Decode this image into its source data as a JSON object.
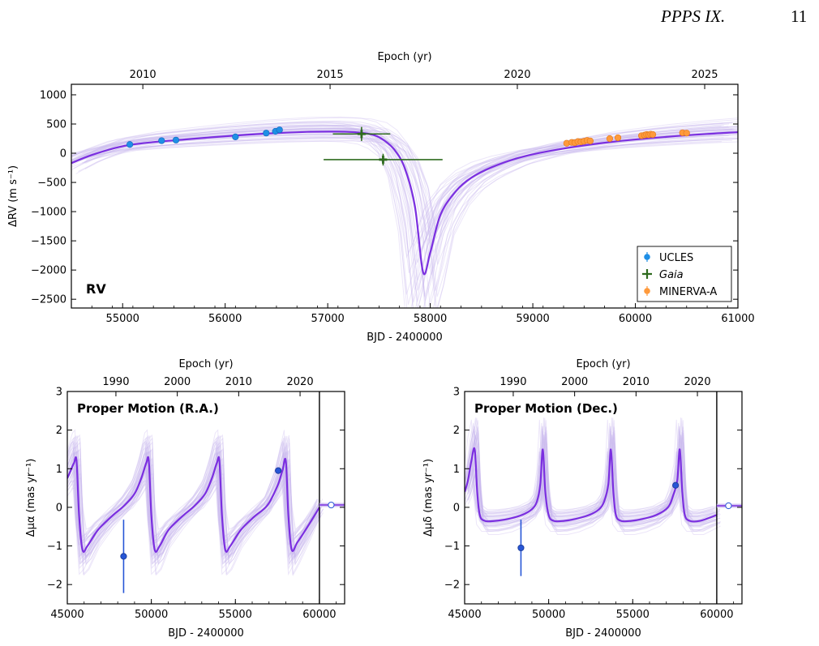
{
  "header": {
    "running_title": "PPPS IX.",
    "page_number": "11"
  },
  "chart_data": [
    {
      "type": "scatter",
      "panel_label": "RV",
      "xlabel": "BJD - 2400000",
      "ylabel": "ΔRV (m s⁻¹)",
      "top_xlabel": "Epoch (yr)",
      "xlim": [
        54500,
        61000
      ],
      "ylim": [
        -2650,
        1180
      ],
      "xticks": [
        55000,
        56000,
        57000,
        58000,
        59000,
        60000,
        61000
      ],
      "yticks": [
        1000,
        500,
        0,
        -500,
        -1000,
        -1500,
        -2000,
        -2500
      ],
      "top_ticks": [
        {
          "label": "2010",
          "value": 55197
        },
        {
          "label": "2015",
          "value": 57023
        },
        {
          "label": "2020",
          "value": 58849
        },
        {
          "label": "2025",
          "value": 60676
        }
      ],
      "legend_position": "lower-right",
      "model_curve": {
        "name": "best-fit orbit",
        "x": [
          54500,
          54700,
          55000,
          55300,
          55600,
          56000,
          56400,
          56800,
          57100,
          57300,
          57450,
          57550,
          57650,
          57750,
          57850,
          57930,
          58000,
          58100,
          58250,
          58400,
          58600,
          58900,
          59300,
          59800,
          60300,
          60700,
          61000
        ],
        "y": [
          -170,
          -30,
          120,
          190,
          235,
          290,
          335,
          365,
          370,
          355,
          310,
          220,
          60,
          -250,
          -900,
          -2040,
          -1700,
          -1050,
          -650,
          -420,
          -240,
          -60,
          80,
          200,
          280,
          330,
          360
        ]
      },
      "series": [
        {
          "name": "UCLES",
          "marker": "circle",
          "color": "#1f8fe6",
          "points": [
            {
              "x": 55070,
              "y": 150
            },
            {
              "x": 55380,
              "y": 215
            },
            {
              "x": 55520,
              "y": 225
            },
            {
              "x": 56100,
              "y": 280
            },
            {
              "x": 56400,
              "y": 345
            },
            {
              "x": 56490,
              "y": 375
            },
            {
              "x": 56530,
              "y": 400
            }
          ]
        },
        {
          "name": "Gaia",
          "marker": "plus",
          "color": "#2e6b1e",
          "points": [
            {
              "x": 57330,
              "y": 330,
              "xerr": 280,
              "yerr": 120
            },
            {
              "x": 57540,
              "y": -110,
              "xerr": 580,
              "yerr": 100
            }
          ]
        },
        {
          "name": "MINERVA-A",
          "marker": "circle",
          "color": "#ff9a3c",
          "points": [
            {
              "x": 59330,
              "y": 170
            },
            {
              "x": 59380,
              "y": 185
            },
            {
              "x": 59410,
              "y": 180
            },
            {
              "x": 59440,
              "y": 200
            },
            {
              "x": 59470,
              "y": 195
            },
            {
              "x": 59500,
              "y": 205
            },
            {
              "x": 59530,
              "y": 220
            },
            {
              "x": 59560,
              "y": 210
            },
            {
              "x": 59750,
              "y": 250
            },
            {
              "x": 59830,
              "y": 265
            },
            {
              "x": 60060,
              "y": 300
            },
            {
              "x": 60090,
              "y": 310
            },
            {
              "x": 60110,
              "y": 320
            },
            {
              "x": 60130,
              "y": 315
            },
            {
              "x": 60150,
              "y": 325
            },
            {
              "x": 60170,
              "y": 320
            },
            {
              "x": 60460,
              "y": 350
            },
            {
              "x": 60500,
              "y": 345
            }
          ]
        }
      ]
    },
    {
      "type": "line",
      "panel_label": "Proper Motion (R.A.)",
      "xlabel": "BJD - 2400000",
      "ylabel": "Δμα (mas yr⁻¹)",
      "top_xlabel": "Epoch (yr)",
      "xlim": [
        45000,
        61500
      ],
      "ylim": [
        -2.5,
        3
      ],
      "xticks": [
        45000,
        50000,
        55000,
        60000
      ],
      "yticks": [
        3,
        2,
        1,
        0,
        -1,
        -2
      ],
      "top_ticks": [
        {
          "label": "1990",
          "value": 47892
        },
        {
          "label": "2000",
          "value": 51544
        },
        {
          "label": "2010",
          "value": 55197
        },
        {
          "label": "2020",
          "value": 58849
        }
      ],
      "vline_x": 60000,
      "model_curve": {
        "x": [
          45000,
          45200,
          45400,
          45550,
          45700,
          45900,
          46200,
          46800,
          47600,
          48400,
          49000,
          49400,
          49700,
          49850,
          50000,
          50200,
          50500,
          51000,
          51800,
          52600,
          53200,
          53600,
          53900,
          54050,
          54200,
          54400,
          54700,
          55300,
          56100,
          56900,
          57500,
          57800,
          58000,
          58150,
          58350,
          58700,
          59300,
          60000
        ],
        "y": [
          0.75,
          0.95,
          1.15,
          1.2,
          -0.2,
          -1.1,
          -1.0,
          -0.6,
          -0.25,
          0.05,
          0.35,
          0.75,
          1.15,
          1.2,
          -0.2,
          -1.1,
          -1.0,
          -0.6,
          -0.25,
          0.05,
          0.35,
          0.75,
          1.15,
          1.2,
          -0.2,
          -1.1,
          -1.0,
          -0.6,
          -0.25,
          0.05,
          0.55,
          0.95,
          1.2,
          -0.2,
          -1.1,
          -0.9,
          -0.5,
          0.0
        ]
      },
      "points": [
        {
          "x": 48350,
          "y": -1.27,
          "yerr": 0.95,
          "style": "filled"
        },
        {
          "x": 57550,
          "y": 0.95,
          "yerr": 0.06,
          "style": "filled"
        },
        {
          "x": 60700,
          "y": 0.06,
          "yerr": 0.05,
          "style": "open"
        }
      ]
    },
    {
      "type": "line",
      "panel_label": "Proper Motion (Dec.)",
      "xlabel": "BJD - 2400000",
      "ylabel": "Δμδ (mas yr⁻¹)",
      "top_xlabel": "Epoch (yr)",
      "xlim": [
        45000,
        61500
      ],
      "ylim": [
        -2.5,
        3
      ],
      "xticks": [
        45000,
        50000,
        55000,
        60000
      ],
      "yticks": [
        3,
        2,
        1,
        0,
        -1,
        -2
      ],
      "top_ticks": [
        {
          "label": "1990",
          "value": 47892
        },
        {
          "label": "2000",
          "value": 51544
        },
        {
          "label": "2010",
          "value": 55197
        },
        {
          "label": "2020",
          "value": 58849
        }
      ],
      "vline_x": 60000,
      "model_curve": {
        "x": [
          45000,
          45200,
          45400,
          45600,
          45750,
          45900,
          46200,
          46800,
          47600,
          48400,
          49000,
          49300,
          49500,
          49650,
          49800,
          50000,
          50300,
          50900,
          51600,
          52400,
          53000,
          53300,
          53550,
          53700,
          53850,
          54000,
          54300,
          54900,
          55600,
          56400,
          57100,
          57400,
          57650,
          57800,
          57950,
          58100,
          58400,
          59000,
          60000
        ],
        "y": [
          0.4,
          0.7,
          1.2,
          1.5,
          0.4,
          -0.2,
          -0.35,
          -0.35,
          -0.3,
          -0.2,
          -0.05,
          0.15,
          0.6,
          1.5,
          0.4,
          -0.2,
          -0.35,
          -0.35,
          -0.3,
          -0.2,
          -0.05,
          0.15,
          0.6,
          1.5,
          0.4,
          -0.2,
          -0.35,
          -0.35,
          -0.3,
          -0.2,
          0.0,
          0.3,
          0.7,
          1.5,
          0.4,
          -0.2,
          -0.35,
          -0.35,
          -0.2
        ]
      },
      "points": [
        {
          "x": 48350,
          "y": -1.05,
          "yerr": 0.73,
          "style": "filled"
        },
        {
          "x": 57550,
          "y": 0.57,
          "yerr": 0.06,
          "style": "filled"
        },
        {
          "x": 60700,
          "y": 0.04,
          "yerr": 0.05,
          "style": "open"
        }
      ]
    }
  ],
  "colors": {
    "model": "#7b2fe0",
    "posterior": "#c9b8ef",
    "pm_points": "#2756d6",
    "axis": "#000000"
  }
}
